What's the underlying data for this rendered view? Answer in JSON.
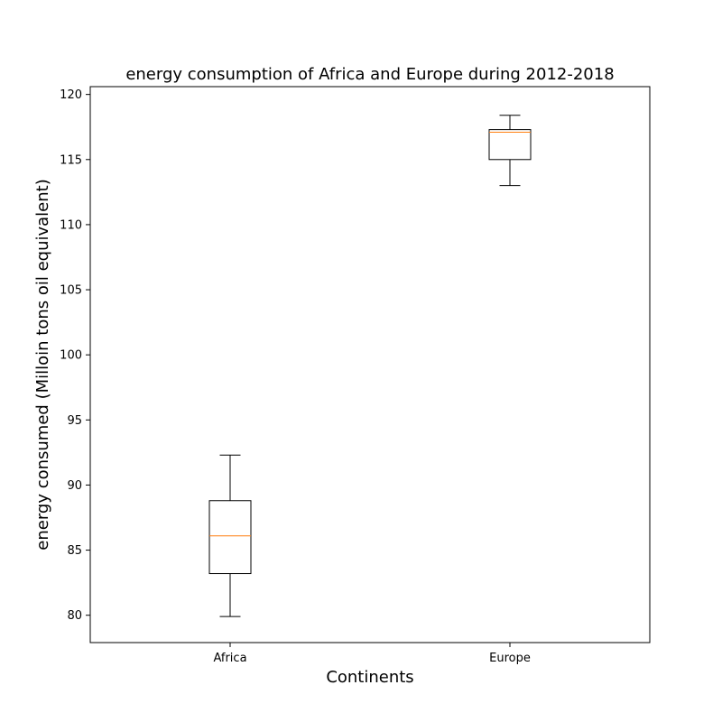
{
  "chart_data": {
    "type": "box",
    "title": "energy consumption of Africa and Europe during 2012-2018",
    "xlabel": "Continents",
    "ylabel": "energy consumed (Milloin tons oil equivalent)",
    "categories": [
      "Africa",
      "Europe"
    ],
    "ylim": [
      77.9,
      120.6
    ],
    "yticks": [
      80,
      85,
      90,
      95,
      100,
      105,
      110,
      115,
      120
    ],
    "grid": false,
    "boxes": [
      {
        "category": "Africa",
        "whisker_low": 79.9,
        "q1": 83.2,
        "median": 86.1,
        "q3": 88.8,
        "whisker_high": 92.3
      },
      {
        "category": "Europe",
        "whisker_low": 113.0,
        "q1": 115.0,
        "median": 117.1,
        "q3": 117.3,
        "whisker_high": 118.4
      }
    ],
    "colors": {
      "box": "#000000",
      "median": "#ff7f0e",
      "background": "#ffffff"
    }
  }
}
